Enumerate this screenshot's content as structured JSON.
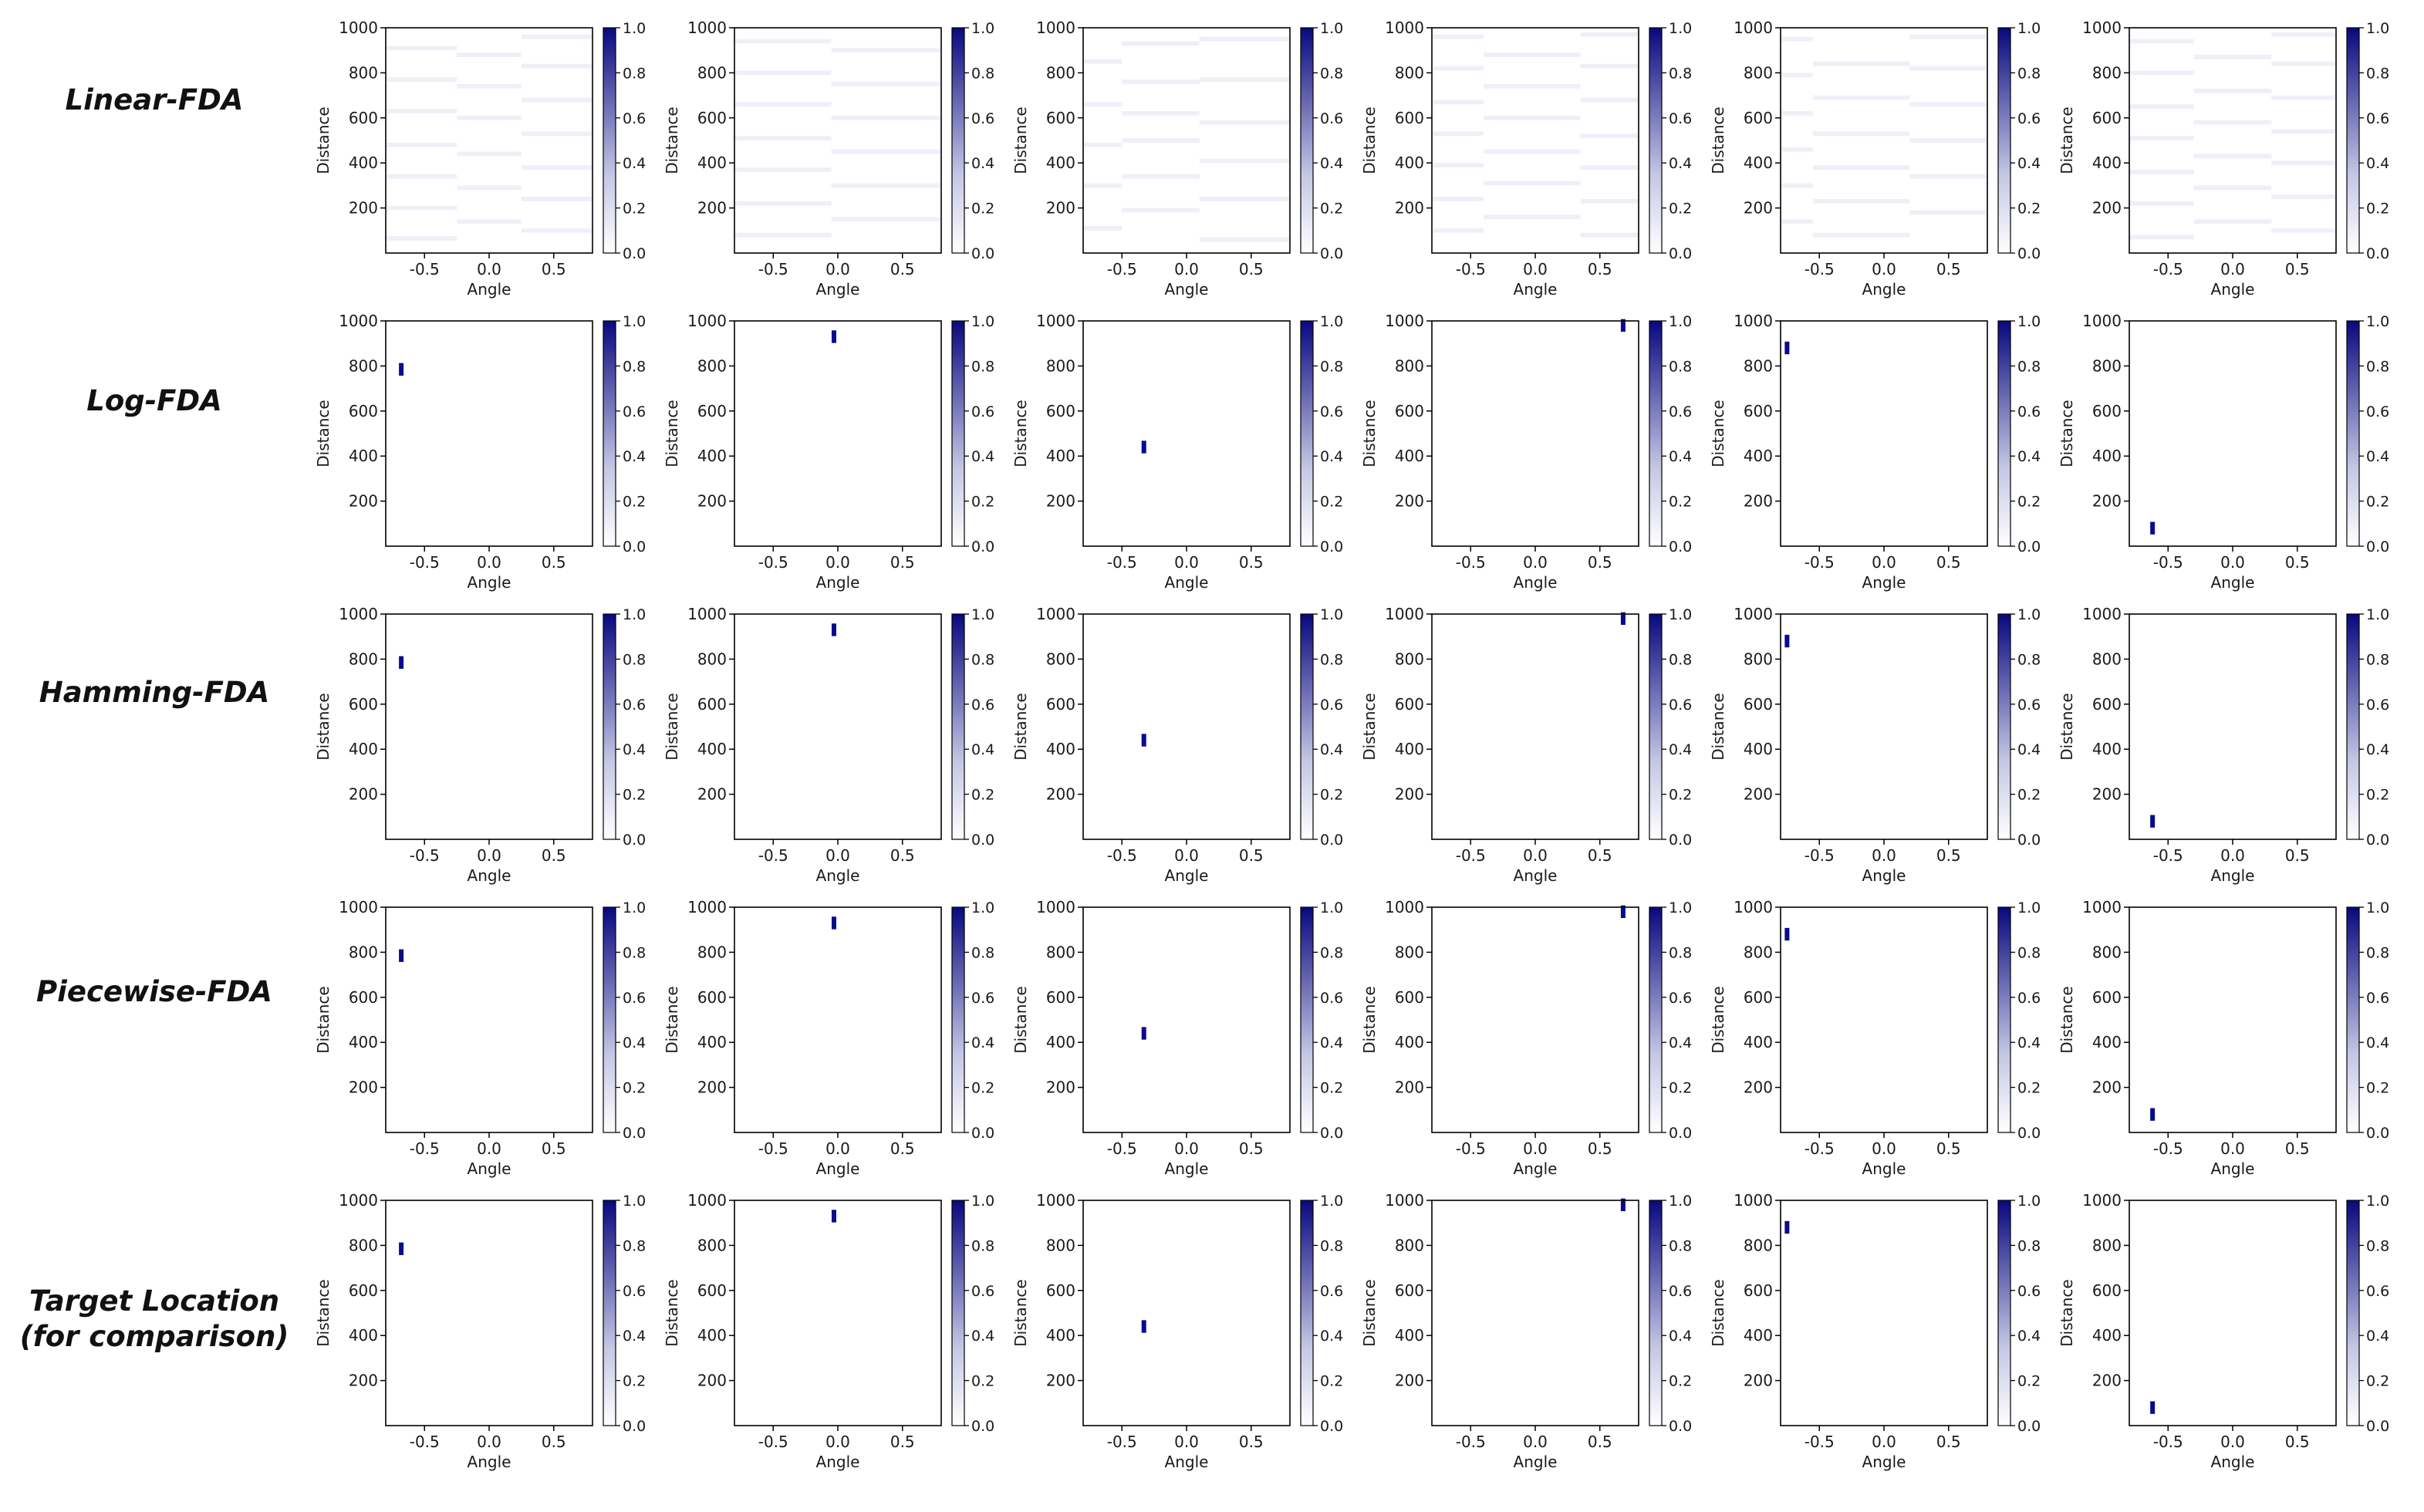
{
  "row_labels": [
    "Linear-FDA",
    "Log-FDA",
    "Hamming-FDA",
    "Piecewise-FDA",
    "Target Location\n(for comparison)"
  ],
  "colors": {
    "background": "#ffffff",
    "axis": "#000000",
    "colormap_low": "#ffffff",
    "colormap_high": "#08087f",
    "hotspot": "#0a0a8c",
    "faint_band": "#eef0f8"
  },
  "chart_data": {
    "type": "heatmap",
    "layout": "grid",
    "rows": 5,
    "cols": 6,
    "xlabel": "Angle",
    "ylabel": "Distance",
    "xlim": [
      -0.8,
      0.8
    ],
    "ylim": [
      0,
      1000
    ],
    "xticks": [
      "-0.5",
      "0.0",
      "0.5"
    ],
    "xtick_values": [
      -0.5,
      0.0,
      0.5
    ],
    "yticks": [
      "200",
      "400",
      "600",
      "800",
      "1000"
    ],
    "ytick_values": [
      200,
      400,
      600,
      800,
      1000
    ],
    "colorbar": {
      "range": [
        0.0,
        1.0
      ],
      "ticks": [
        "0.0",
        "0.2",
        "0.4",
        "0.6",
        "0.8",
        "1.0"
      ],
      "tick_values": [
        0.0,
        0.2,
        0.4,
        0.6,
        0.8,
        1.0
      ]
    },
    "targets": [
      {
        "angle": -0.68,
        "distance": 785
      },
      {
        "angle": -0.03,
        "distance": 930
      },
      {
        "angle": -0.33,
        "distance": 440
      },
      {
        "angle": 0.68,
        "distance": 980
      },
      {
        "angle": -0.75,
        "distance": 880
      },
      {
        "angle": -0.62,
        "distance": 80
      }
    ],
    "linear_fda_faint_bands": [
      {
        "columns": [
          {
            "x": [
              -0.8,
              -0.25
            ],
            "distances": [
              65,
              200,
              340,
              480,
              630,
              770,
              910
            ]
          },
          {
            "x": [
              -0.25,
              0.25
            ],
            "distances": [
              140,
              290,
              440,
              600,
              740,
              880
            ]
          },
          {
            "x": [
              0.25,
              0.8
            ],
            "distances": [
              100,
              240,
              380,
              530,
              680,
              830,
              960
            ]
          }
        ]
      },
      {
        "columns": [
          {
            "x": [
              -0.8,
              -0.05
            ],
            "distances": [
              80,
              220,
              370,
              510,
              660,
              800,
              940
            ]
          },
          {
            "x": [
              -0.05,
              0.8
            ],
            "distances": [
              150,
              300,
              450,
              600,
              750,
              900
            ]
          }
        ]
      },
      {
        "columns": [
          {
            "x": [
              -0.8,
              -0.5
            ],
            "distances": [
              110,
              300,
              480,
              660,
              850
            ]
          },
          {
            "x": [
              -0.5,
              0.1
            ],
            "distances": [
              190,
              340,
              500,
              620,
              760,
              930
            ]
          },
          {
            "x": [
              0.1,
              0.8
            ],
            "distances": [
              60,
              240,
              410,
              580,
              770,
              950
            ]
          }
        ]
      },
      {
        "columns": [
          {
            "x": [
              -0.8,
              -0.4
            ],
            "distances": [
              100,
              240,
              390,
              530,
              670,
              820,
              960
            ]
          },
          {
            "x": [
              -0.4,
              0.35
            ],
            "distances": [
              160,
              310,
              450,
              600,
              740,
              880
            ]
          },
          {
            "x": [
              0.35,
              0.8
            ],
            "distances": [
              80,
              230,
              380,
              520,
              680,
              830,
              970
            ]
          }
        ]
      },
      {
        "columns": [
          {
            "x": [
              -0.8,
              -0.55
            ],
            "distances": [
              140,
              300,
              460,
              620,
              790,
              950
            ]
          },
          {
            "x": [
              -0.55,
              0.2
            ],
            "distances": [
              80,
              230,
              380,
              530,
              690,
              840
            ]
          },
          {
            "x": [
              0.2,
              0.8
            ],
            "distances": [
              180,
              340,
              500,
              660,
              820,
              960
            ]
          }
        ]
      },
      {
        "columns": [
          {
            "x": [
              -0.8,
              -0.3
            ],
            "distances": [
              70,
              220,
              360,
              510,
              650,
              800,
              940
            ]
          },
          {
            "x": [
              -0.3,
              0.3
            ],
            "distances": [
              140,
              290,
              430,
              580,
              720,
              870
            ]
          },
          {
            "x": [
              0.3,
              0.8
            ],
            "distances": [
              100,
              250,
              400,
              540,
              690,
              840,
              970
            ]
          }
        ]
      }
    ]
  }
}
